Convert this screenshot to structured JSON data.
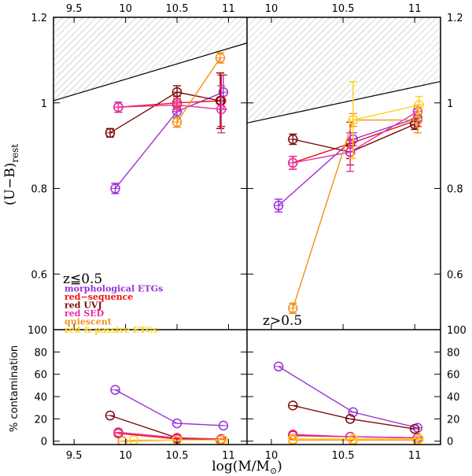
{
  "chart_data": {
    "type": "scatter",
    "title": "",
    "xlabel": "log(M/M⊙)",
    "xlabel_parts": [
      "log(M/M",
      "⊙",
      ")"
    ],
    "ylabel_upper": "(U−B)rest",
    "ylabel_upper_parts": [
      "(U−B)",
      "rest"
    ],
    "ylabel_lower": "% contamination",
    "panels": {
      "left": {
        "xlim": [
          9.3,
          11.18
        ],
        "xticks": [
          "9.5",
          "10",
          "10.5",
          "11"
        ],
        "xtick_values": [
          9.5,
          10,
          10.5,
          11
        ],
        "label": "z≦0.5",
        "boundary_line": {
          "x": [
            9.3,
            11.18
          ],
          "y": [
            1.005,
            1.14
          ]
        }
      },
      "right": {
        "xlim": [
          9.83,
          11.18
        ],
        "xticks": [
          "10",
          "10.5",
          "11"
        ],
        "xtick_values": [
          10,
          10.5,
          11
        ],
        "label": "z>0.5",
        "boundary_line": {
          "x": [
            9.83,
            11.18
          ],
          "y": [
            0.953,
            1.05
          ]
        }
      }
    },
    "upper_ylim": [
      0.47,
      1.2
    ],
    "upper_yticks": [
      "0.6",
      "0.8",
      "1",
      "1.2"
    ],
    "upper_ytick_values": [
      0.6,
      0.8,
      1.0,
      1.2
    ],
    "lower_ylim": [
      -3,
      100
    ],
    "lower_yticks": [
      "0",
      "20",
      "40",
      "60",
      "80",
      "100"
    ],
    "lower_ytick_values": [
      0,
      20,
      40,
      60,
      80,
      100
    ],
    "series": [
      {
        "name": "morphological ETGs",
        "color": "#9b30d9",
        "left": {
          "x": [
            9.9,
            10.5,
            10.95
          ],
          "y": [
            0.8,
            0.98,
            1.025
          ],
          "err": [
            0.012,
            0.015,
            0.04
          ]
        },
        "right": {
          "x": [
            10.05,
            10.57,
            11.02
          ],
          "y": [
            0.76,
            0.915,
            0.965
          ],
          "err": [
            0.015,
            0.015,
            0.02
          ]
        },
        "contam_left": {
          "x": [
            9.9,
            10.5,
            10.95
          ],
          "y": [
            46,
            16,
            14
          ]
        },
        "contam_right": {
          "x": [
            10.05,
            10.57,
            11.02
          ],
          "y": [
            67,
            26,
            12
          ]
        }
      },
      {
        "name": "red−sequence",
        "color": "#ee1111",
        "left": {
          "x": [
            9.93,
            10.5,
            10.93
          ],
          "y": [
            0.99,
            1.0,
            1.005
          ],
          "err": [
            0.012,
            0.015,
            0.06
          ]
        },
        "right": {
          "x": [
            10.15,
            10.55,
            11.02
          ],
          "y": [
            0.86,
            0.905,
            0.96
          ],
          "err": [
            0.015,
            0.05,
            0.015
          ]
        },
        "contam_left": {
          "x": [
            9.93,
            10.5,
            10.93
          ],
          "y": [
            7,
            2,
            2
          ]
        },
        "contam_right": {
          "x": [
            10.15,
            10.55,
            11.02
          ],
          "y": [
            5,
            4,
            3
          ]
        }
      },
      {
        "name": "red UVJ",
        "color": "#7a0c0c",
        "left": {
          "x": [
            9.85,
            10.5,
            10.92
          ],
          "y": [
            0.93,
            1.025,
            1.005
          ],
          "err": [
            0.01,
            0.015,
            0.065
          ]
        },
        "right": {
          "x": [
            10.15,
            10.55,
            11.0
          ],
          "y": [
            0.915,
            0.885,
            0.95
          ],
          "err": [
            0.012,
            0.015,
            0.012
          ]
        },
        "contam_left": {
          "x": [
            9.85,
            10.5,
            10.92
          ],
          "y": [
            23,
            3,
            1
          ]
        },
        "contam_right": {
          "x": [
            10.15,
            10.55,
            11.0
          ],
          "y": [
            32,
            20,
            11
          ]
        }
      },
      {
        "name": "red SED",
        "color": "#e62ea3",
        "left": {
          "x": [
            9.93,
            10.5,
            10.93
          ],
          "y": [
            0.99,
            0.995,
            0.985
          ],
          "err": [
            0.012,
            0.015,
            0.055
          ]
        },
        "right": {
          "x": [
            10.15,
            10.55,
            11.02
          ],
          "y": [
            0.86,
            0.885,
            0.98
          ],
          "err": [
            0.015,
            0.045,
            0.015
          ]
        },
        "contam_left": {
          "x": [
            9.93,
            10.5,
            10.93
          ],
          "y": [
            8,
            3,
            2
          ]
        },
        "contam_right": {
          "x": [
            10.15,
            10.55,
            11.02
          ],
          "y": [
            6,
            4,
            3
          ]
        }
      },
      {
        "name": "quiescent",
        "color": "#f0901c",
        "left": {
          "x": [
            9.97,
            10.5,
            10.92
          ],
          "y": [
            null,
            0.955,
            1.105
          ],
          "err": [
            0,
            0.012,
            0.012
          ]
        },
        "right": {
          "x": [
            10.15,
            10.57,
            11.02
          ],
          "y": [
            0.52,
            0.96,
            0.96
          ],
          "err": [
            0.012,
            0.015,
            0.03
          ]
        },
        "contam_left": {
          "x": [
            9.97,
            10.5,
            10.92
          ],
          "y": [
            0,
            1,
            1
          ]
        },
        "contam_right": {
          "x": [
            10.15,
            10.57,
            11.02
          ],
          "y": [
            1,
            1,
            1
          ]
        }
      },
      {
        "name": "red & passive ETGs",
        "color": "#ffd21a",
        "left": {
          "x": [
            10.08,
            10.5,
            10.95
          ],
          "y": [
            null,
            null,
            null
          ],
          "err": [
            0,
            0,
            0
          ]
        },
        "right": {
          "x": [
            10.15,
            10.57,
            11.03
          ],
          "y": [
            null,
            0.96,
            0.995
          ],
          "err": [
            0,
            0.09,
            0.02
          ]
        },
        "contam_left": {
          "x": [
            10.08,
            10.5,
            10.95
          ],
          "y": [
            1,
            1,
            1
          ]
        },
        "contam_right": {
          "x": [
            10.15,
            10.57,
            11.03
          ],
          "y": [
            2,
            2,
            2
          ]
        }
      }
    ]
  }
}
